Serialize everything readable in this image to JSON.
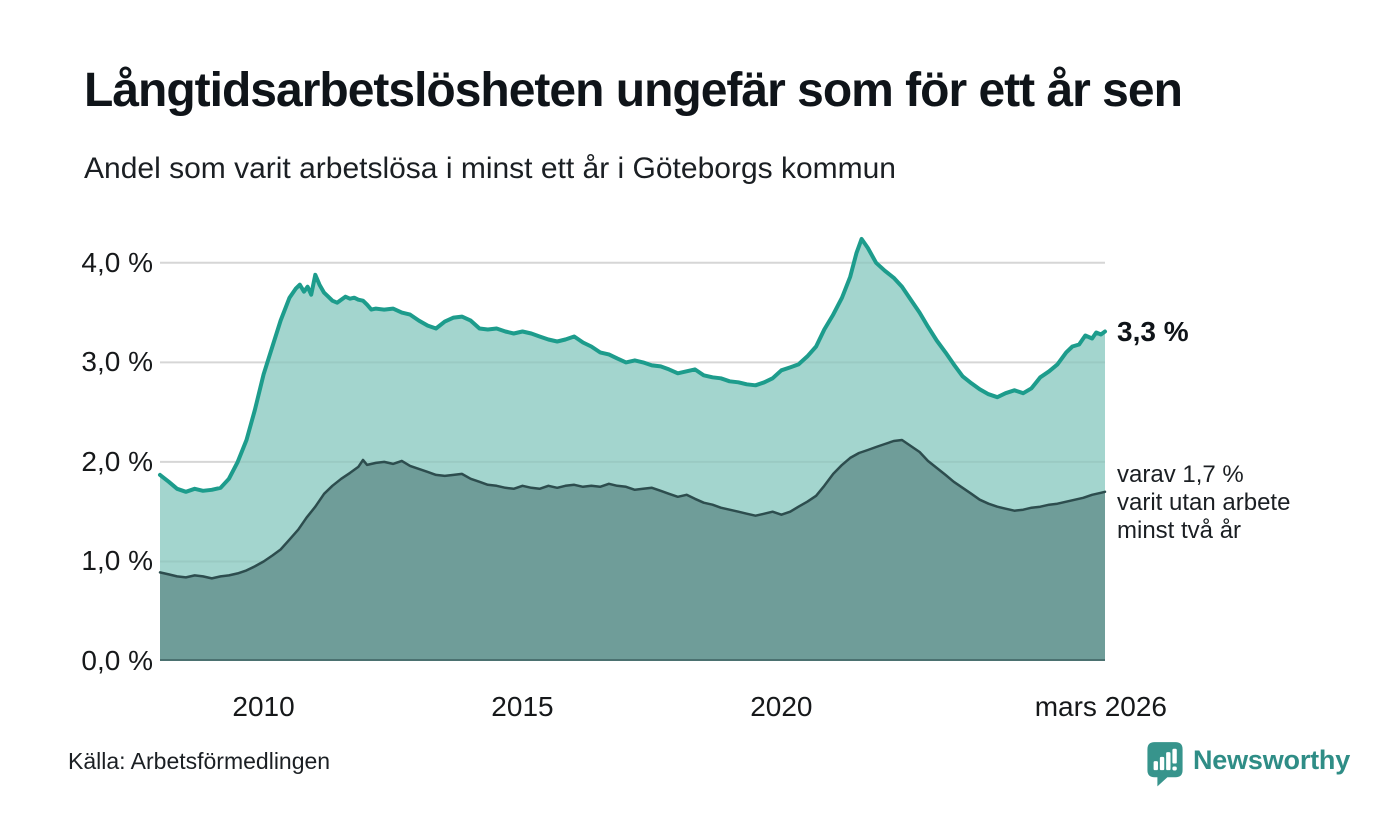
{
  "header": {
    "title": "Långtidsarbetslösheten ungefär som för ett år sen",
    "subtitle": "Andel som varit arbetslösa i minst ett år i Göteborgs kommun"
  },
  "chart_data": {
    "type": "area",
    "x_unit": "decimal-year",
    "xlim": [
      2008.0,
      2026.25
    ],
    "ylim": [
      0,
      4.33
    ],
    "grid": true,
    "legend_position": "right-annotations",
    "yticks": [
      {
        "value": 4.0,
        "label": "4,0 %"
      },
      {
        "value": 3.0,
        "label": "3,0 %"
      },
      {
        "value": 2.0,
        "label": "2,0 %"
      },
      {
        "value": 1.0,
        "label": "1,0 %"
      },
      {
        "value": 0.0,
        "label": "0,0 %"
      }
    ],
    "xticks": [
      {
        "x": 2010,
        "label": "2010"
      },
      {
        "x": 2015,
        "label": "2015"
      },
      {
        "x": 2020,
        "label": "2020"
      },
      {
        "x": 2026.17,
        "label": "mars 2026"
      }
    ],
    "series": [
      {
        "name": "Andel arbetslösa minst ett år",
        "line_color": "#1d9c8c",
        "fill_color": "#a3d5ce",
        "line_width": 4,
        "latest_value": 3.3,
        "points": [
          [
            2008.0,
            1.87
          ],
          [
            2008.17,
            1.8
          ],
          [
            2008.33,
            1.73
          ],
          [
            2008.5,
            1.7
          ],
          [
            2008.67,
            1.73
          ],
          [
            2008.83,
            1.71
          ],
          [
            2009.0,
            1.72
          ],
          [
            2009.17,
            1.74
          ],
          [
            2009.33,
            1.83
          ],
          [
            2009.5,
            2.0
          ],
          [
            2009.67,
            2.22
          ],
          [
            2009.83,
            2.52
          ],
          [
            2010.0,
            2.88
          ],
          [
            2010.17,
            3.16
          ],
          [
            2010.33,
            3.42
          ],
          [
            2010.5,
            3.65
          ],
          [
            2010.62,
            3.74
          ],
          [
            2010.7,
            3.78
          ],
          [
            2010.78,
            3.71
          ],
          [
            2010.85,
            3.76
          ],
          [
            2010.92,
            3.68
          ],
          [
            2011.0,
            3.88
          ],
          [
            2011.08,
            3.78
          ],
          [
            2011.17,
            3.7
          ],
          [
            2011.25,
            3.66
          ],
          [
            2011.33,
            3.62
          ],
          [
            2011.42,
            3.6
          ],
          [
            2011.5,
            3.63
          ],
          [
            2011.58,
            3.66
          ],
          [
            2011.67,
            3.64
          ],
          [
            2011.75,
            3.65
          ],
          [
            2011.83,
            3.63
          ],
          [
            2011.92,
            3.62
          ],
          [
            2012.0,
            3.58
          ],
          [
            2012.08,
            3.53
          ],
          [
            2012.17,
            3.54
          ],
          [
            2012.33,
            3.53
          ],
          [
            2012.5,
            3.54
          ],
          [
            2012.67,
            3.5
          ],
          [
            2012.83,
            3.48
          ],
          [
            2013.0,
            3.42
          ],
          [
            2013.17,
            3.37
          ],
          [
            2013.33,
            3.34
          ],
          [
            2013.5,
            3.41
          ],
          [
            2013.67,
            3.45
          ],
          [
            2013.83,
            3.46
          ],
          [
            2014.0,
            3.42
          ],
          [
            2014.17,
            3.34
          ],
          [
            2014.33,
            3.33
          ],
          [
            2014.5,
            3.34
          ],
          [
            2014.67,
            3.31
          ],
          [
            2014.83,
            3.29
          ],
          [
            2015.0,
            3.31
          ],
          [
            2015.17,
            3.29
          ],
          [
            2015.33,
            3.26
          ],
          [
            2015.5,
            3.23
          ],
          [
            2015.67,
            3.21
          ],
          [
            2015.83,
            3.23
          ],
          [
            2016.0,
            3.26
          ],
          [
            2016.17,
            3.2
          ],
          [
            2016.33,
            3.16
          ],
          [
            2016.5,
            3.1
          ],
          [
            2016.67,
            3.08
          ],
          [
            2016.83,
            3.04
          ],
          [
            2017.0,
            3.0
          ],
          [
            2017.17,
            3.02
          ],
          [
            2017.33,
            3.0
          ],
          [
            2017.5,
            2.97
          ],
          [
            2017.67,
            2.96
          ],
          [
            2017.83,
            2.93
          ],
          [
            2018.0,
            2.89
          ],
          [
            2018.17,
            2.91
          ],
          [
            2018.33,
            2.93
          ],
          [
            2018.5,
            2.87
          ],
          [
            2018.67,
            2.85
          ],
          [
            2018.83,
            2.84
          ],
          [
            2019.0,
            2.81
          ],
          [
            2019.17,
            2.8
          ],
          [
            2019.33,
            2.78
          ],
          [
            2019.5,
            2.77
          ],
          [
            2019.67,
            2.8
          ],
          [
            2019.83,
            2.84
          ],
          [
            2020.0,
            2.92
          ],
          [
            2020.17,
            2.95
          ],
          [
            2020.33,
            2.98
          ],
          [
            2020.5,
            3.06
          ],
          [
            2020.67,
            3.16
          ],
          [
            2020.83,
            3.33
          ],
          [
            2021.0,
            3.48
          ],
          [
            2021.17,
            3.65
          ],
          [
            2021.33,
            3.86
          ],
          [
            2021.45,
            4.1
          ],
          [
            2021.55,
            4.24
          ],
          [
            2021.67,
            4.15
          ],
          [
            2021.83,
            4.0
          ],
          [
            2022.0,
            3.92
          ],
          [
            2022.17,
            3.85
          ],
          [
            2022.33,
            3.76
          ],
          [
            2022.5,
            3.63
          ],
          [
            2022.67,
            3.5
          ],
          [
            2022.83,
            3.36
          ],
          [
            2023.0,
            3.22
          ],
          [
            2023.17,
            3.1
          ],
          [
            2023.33,
            2.98
          ],
          [
            2023.5,
            2.86
          ],
          [
            2023.67,
            2.79
          ],
          [
            2023.83,
            2.73
          ],
          [
            2024.0,
            2.68
          ],
          [
            2024.17,
            2.65
          ],
          [
            2024.33,
            2.69
          ],
          [
            2024.5,
            2.72
          ],
          [
            2024.67,
            2.69
          ],
          [
            2024.83,
            2.74
          ],
          [
            2025.0,
            2.85
          ],
          [
            2025.17,
            2.91
          ],
          [
            2025.33,
            2.98
          ],
          [
            2025.5,
            3.1
          ],
          [
            2025.62,
            3.16
          ],
          [
            2025.75,
            3.18
          ],
          [
            2025.87,
            3.27
          ],
          [
            2026.0,
            3.24
          ],
          [
            2026.08,
            3.3
          ],
          [
            2026.17,
            3.28
          ],
          [
            2026.25,
            3.31
          ]
        ]
      },
      {
        "name": "Varav utan arbete minst två år",
        "line_color": "#2d4d4e",
        "fill_color": "#6f9d99",
        "line_width": 2.5,
        "latest_value": 1.7,
        "points": [
          [
            2008.0,
            0.89
          ],
          [
            2008.17,
            0.87
          ],
          [
            2008.33,
            0.85
          ],
          [
            2008.5,
            0.84
          ],
          [
            2008.67,
            0.86
          ],
          [
            2008.83,
            0.85
          ],
          [
            2009.0,
            0.83
          ],
          [
            2009.17,
            0.85
          ],
          [
            2009.33,
            0.86
          ],
          [
            2009.5,
            0.88
          ],
          [
            2009.67,
            0.91
          ],
          [
            2009.83,
            0.95
          ],
          [
            2010.0,
            1.0
          ],
          [
            2010.17,
            1.06
          ],
          [
            2010.33,
            1.12
          ],
          [
            2010.5,
            1.22
          ],
          [
            2010.67,
            1.32
          ],
          [
            2010.83,
            1.44
          ],
          [
            2011.0,
            1.55
          ],
          [
            2011.17,
            1.68
          ],
          [
            2011.33,
            1.76
          ],
          [
            2011.5,
            1.83
          ],
          [
            2011.67,
            1.89
          ],
          [
            2011.83,
            1.95
          ],
          [
            2011.92,
            2.02
          ],
          [
            2012.0,
            1.97
          ],
          [
            2012.17,
            1.99
          ],
          [
            2012.33,
            2.0
          ],
          [
            2012.5,
            1.98
          ],
          [
            2012.67,
            2.01
          ],
          [
            2012.83,
            1.96
          ],
          [
            2013.0,
            1.93
          ],
          [
            2013.17,
            1.9
          ],
          [
            2013.33,
            1.87
          ],
          [
            2013.5,
            1.86
          ],
          [
            2013.67,
            1.87
          ],
          [
            2013.83,
            1.88
          ],
          [
            2014.0,
            1.83
          ],
          [
            2014.17,
            1.8
          ],
          [
            2014.33,
            1.77
          ],
          [
            2014.5,
            1.76
          ],
          [
            2014.67,
            1.74
          ],
          [
            2014.83,
            1.73
          ],
          [
            2015.0,
            1.76
          ],
          [
            2015.17,
            1.74
          ],
          [
            2015.33,
            1.73
          ],
          [
            2015.5,
            1.76
          ],
          [
            2015.67,
            1.74
          ],
          [
            2015.83,
            1.76
          ],
          [
            2016.0,
            1.77
          ],
          [
            2016.17,
            1.75
          ],
          [
            2016.33,
            1.76
          ],
          [
            2016.5,
            1.75
          ],
          [
            2016.67,
            1.78
          ],
          [
            2016.83,
            1.76
          ],
          [
            2017.0,
            1.75
          ],
          [
            2017.17,
            1.72
          ],
          [
            2017.33,
            1.73
          ],
          [
            2017.5,
            1.74
          ],
          [
            2017.67,
            1.71
          ],
          [
            2017.83,
            1.68
          ],
          [
            2018.0,
            1.65
          ],
          [
            2018.17,
            1.67
          ],
          [
            2018.33,
            1.63
          ],
          [
            2018.5,
            1.59
          ],
          [
            2018.67,
            1.57
          ],
          [
            2018.83,
            1.54
          ],
          [
            2019.0,
            1.52
          ],
          [
            2019.17,
            1.5
          ],
          [
            2019.33,
            1.48
          ],
          [
            2019.5,
            1.46
          ],
          [
            2019.67,
            1.48
          ],
          [
            2019.83,
            1.5
          ],
          [
            2020.0,
            1.47
          ],
          [
            2020.17,
            1.5
          ],
          [
            2020.33,
            1.55
          ],
          [
            2020.5,
            1.6
          ],
          [
            2020.67,
            1.66
          ],
          [
            2020.83,
            1.76
          ],
          [
            2021.0,
            1.88
          ],
          [
            2021.17,
            1.97
          ],
          [
            2021.33,
            2.04
          ],
          [
            2021.5,
            2.09
          ],
          [
            2021.67,
            2.12
          ],
          [
            2021.83,
            2.15
          ],
          [
            2022.0,
            2.18
          ],
          [
            2022.17,
            2.21
          ],
          [
            2022.33,
            2.22
          ],
          [
            2022.5,
            2.16
          ],
          [
            2022.67,
            2.1
          ],
          [
            2022.83,
            2.01
          ],
          [
            2023.0,
            1.94
          ],
          [
            2023.17,
            1.87
          ],
          [
            2023.33,
            1.8
          ],
          [
            2023.5,
            1.74
          ],
          [
            2023.67,
            1.68
          ],
          [
            2023.83,
            1.62
          ],
          [
            2024.0,
            1.58
          ],
          [
            2024.17,
            1.55
          ],
          [
            2024.33,
            1.53
          ],
          [
            2024.5,
            1.51
          ],
          [
            2024.67,
            1.52
          ],
          [
            2024.83,
            1.54
          ],
          [
            2025.0,
            1.55
          ],
          [
            2025.17,
            1.57
          ],
          [
            2025.33,
            1.58
          ],
          [
            2025.5,
            1.6
          ],
          [
            2025.67,
            1.62
          ],
          [
            2025.83,
            1.64
          ],
          [
            2026.0,
            1.67
          ],
          [
            2026.17,
            1.69
          ],
          [
            2026.25,
            1.7
          ]
        ]
      }
    ],
    "annotations": [
      {
        "text": "3,3 %",
        "value": 3.3,
        "bold": true
      },
      {
        "value": 1.7,
        "lines": [
          "varav 1,7 %",
          "varit utan arbete",
          "minst två år"
        ]
      }
    ]
  },
  "colors": {
    "accent_line": "#1d9c8c",
    "fill_light": "#a3d5ce",
    "fill_dark": "#6f9d99",
    "line_dark": "#2d4d4e",
    "grid": "#e2e2e2",
    "brand": "#2f8d86",
    "brand_icon": "#37948c"
  },
  "footer": {
    "source": "Källa: Arbetsförmedlingen",
    "brand_name": "Newsworthy"
  }
}
